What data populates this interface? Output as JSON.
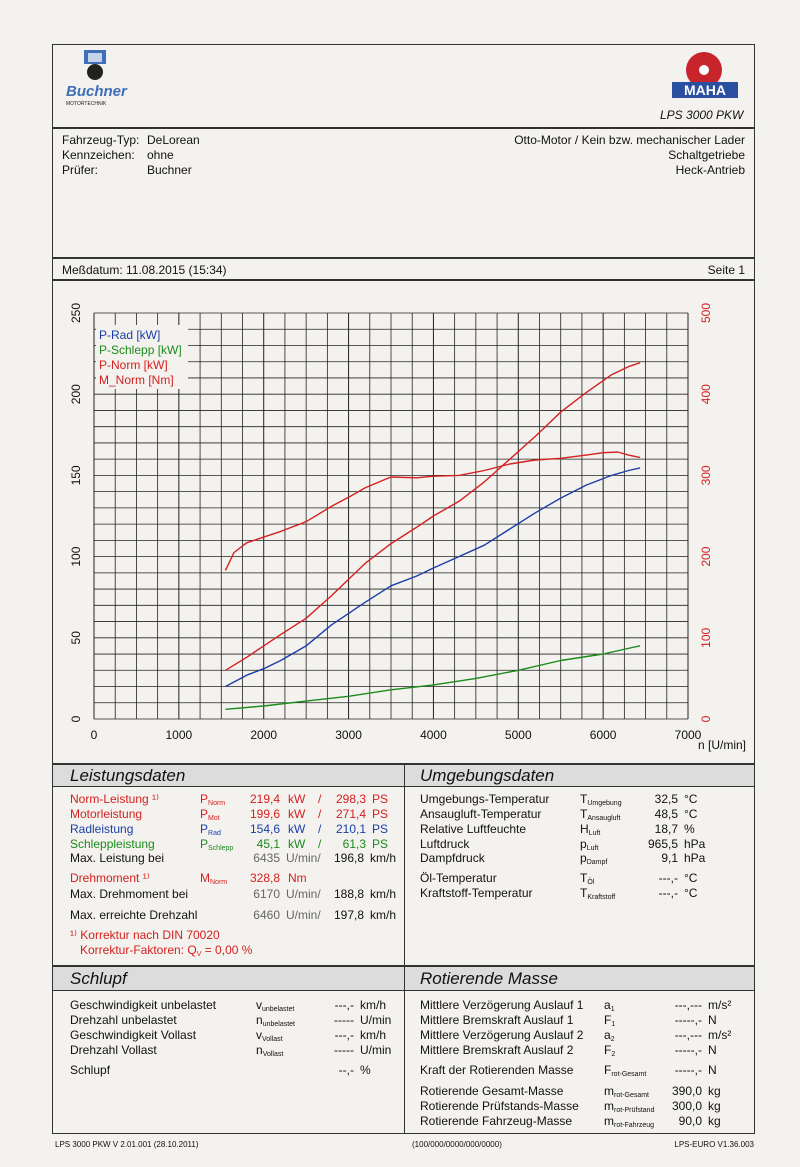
{
  "header": {
    "brand_left": "Buchner",
    "brand_left_sub": "MOTORTECHNIK",
    "brand_right_model": "LPS 3000 PKW",
    "brand_right_logo": "MAHA",
    "vehicle_type_label": "Fahrzeug-Typ:",
    "vehicle_type": "DeLorean",
    "plate_label": "Kennzeichen:",
    "plate": "ohne",
    "inspector_label": "Prüfer:",
    "inspector": "Buchner",
    "engine": "Otto-Motor / Kein bzw. mechanischer Lader",
    "gearbox": "Schaltgetriebe",
    "drive": "Heck-Antrieb",
    "measure_date": "Meßdatum: 11.08.2015 (15:34)",
    "page": "Seite 1"
  },
  "chart_data": {
    "type": "line",
    "xlabel": "n [U/min]",
    "x_ticks": [
      0,
      1000,
      2000,
      3000,
      4000,
      5000,
      6000,
      7000
    ],
    "left_ticks": [
      0,
      50,
      100,
      150,
      200,
      250
    ],
    "right_ticks": [
      0,
      100,
      200,
      300,
      400,
      500
    ],
    "xlim": [
      0,
      7000
    ],
    "ylim_left": [
      0,
      250
    ],
    "ylim_right": [
      0,
      500
    ],
    "legend": [
      "P-Rad [kW]",
      "P-Schlepp [kW]",
      "P-Norm [kW]",
      "M_Norm [Nm]"
    ],
    "series": [
      {
        "name": "P-Rad [kW]",
        "color": "#1a3ea8",
        "axis": "left",
        "x": [
          1550,
          1800,
          2000,
          2200,
          2500,
          2800,
          3000,
          3200,
          3500,
          3800,
          4000,
          4300,
          4600,
          4900,
          5200,
          5500,
          5800,
          6100,
          6300,
          6435
        ],
        "y": [
          20,
          27,
          31,
          36,
          45,
          58,
          65,
          72,
          82,
          88,
          93,
          100,
          107,
          117,
          127,
          136,
          144,
          150,
          153,
          154.6
        ]
      },
      {
        "name": "P-Schlepp [kW]",
        "color": "#1c8a1c",
        "axis": "left",
        "x": [
          1550,
          2000,
          2500,
          3000,
          3500,
          4000,
          4500,
          5000,
          5500,
          6000,
          6435
        ],
        "y": [
          6,
          8,
          11,
          14,
          18,
          21,
          25,
          30,
          36,
          40,
          45.1
        ]
      },
      {
        "name": "P-Norm [kW]",
        "color": "#d42020",
        "axis": "left",
        "x": [
          1550,
          1800,
          2000,
          2200,
          2500,
          2800,
          3000,
          3200,
          3500,
          3800,
          4000,
          4300,
          4600,
          4900,
          5200,
          5500,
          5800,
          6100,
          6300,
          6435
        ],
        "y": [
          30,
          38,
          45,
          52,
          62,
          76,
          86,
          96,
          108,
          118,
          125,
          134,
          146,
          160,
          174,
          189,
          201,
          212,
          217,
          219.4
        ]
      },
      {
        "name": "M_Norm [Nm]",
        "color": "#d42020",
        "axis": "right",
        "x": [
          1550,
          1650,
          1800,
          2000,
          2200,
          2500,
          2800,
          3000,
          3200,
          3500,
          3800,
          4000,
          4300,
          4600,
          4900,
          5200,
          5500,
          5800,
          6000,
          6170,
          6300,
          6435
        ],
        "y": [
          183,
          205,
          217,
          224,
          231,
          243,
          262,
          273,
          285,
          298,
          297,
          299,
          300,
          306,
          314,
          319,
          321,
          325,
          328,
          328.8,
          325,
          322
        ]
      }
    ]
  },
  "leistung": {
    "title": "Leistungsdaten",
    "rows": [
      {
        "label": "Norm-Leistung ¹⁾",
        "sym": "P",
        "sub": "Norm",
        "v1": "219,4",
        "u1": "kW",
        "sep": "/",
        "v2": "298,3",
        "u2": "PS"
      },
      {
        "label": "Motorleistung",
        "sym": "P",
        "sub": "Mot",
        "v1": "199,6",
        "u1": "kW",
        "sep": "/",
        "v2": "271,4",
        "u2": "PS"
      },
      {
        "label": "Radleistung",
        "sym": "P",
        "sub": "Rad",
        "v1": "154,6",
        "u1": "kW",
        "sep": "/",
        "v2": "210,1",
        "u2": "PS"
      },
      {
        "label": "Schleppleistung",
        "sym": "P",
        "sub": "Schlepp",
        "v1": "45,1",
        "u1": "kW",
        "sep": "/",
        "v2": "61,3",
        "u2": "PS"
      }
    ],
    "maxp_label": "Max. Leistung bei",
    "maxp_rpm": "6435",
    "maxp_rpm_unit": "U/min/",
    "maxp_speed": "196,8",
    "maxp_speed_unit": "km/h",
    "torque_label": "Drehmoment ¹⁾",
    "torque_sym": "M",
    "torque_sub": "Norm",
    "torque_val": "328,8",
    "torque_unit": "Nm",
    "maxt_label": "Max. Drehmoment bei",
    "maxt_rpm": "6170",
    "maxt_rpm_unit": "U/min/",
    "maxt_speed": "188,8",
    "maxt_speed_unit": "km/h",
    "maxn_label": "Max. erreichte Drehzahl",
    "maxn_rpm": "6460",
    "maxn_rpm_unit": "U/min/",
    "maxn_speed": "197,8",
    "maxn_speed_unit": "km/h",
    "note1": "¹⁾ Korrektur nach DIN 70020",
    "note2": "Korrektur-Faktoren: Q",
    "note2_sub": "V",
    "note2_val": "=   0,00 %"
  },
  "umgebung": {
    "title": "Umgebungsdaten",
    "rows": [
      {
        "label": "Umgebungs-Temperatur",
        "sym": "T",
        "sub": "Umgebung",
        "val": "32,5",
        "unit": "°C"
      },
      {
        "label": "Ansaugluft-Temperatur",
        "sym": "T",
        "sub": "Ansaugluft",
        "val": "48,5",
        "unit": "°C"
      },
      {
        "label": "Relative Luftfeuchte",
        "sym": "H",
        "sub": "Luft",
        "val": "18,7",
        "unit": "%"
      },
      {
        "label": "Luftdruck",
        "sym": "p",
        "sub": "Luft",
        "val": "965,5",
        "unit": "hPa"
      },
      {
        "label": "Dampfdruck",
        "sym": "p",
        "sub": "Dampf",
        "val": "9,1",
        "unit": "hPa"
      },
      {
        "label": "Öl-Temperatur",
        "sym": "T",
        "sub": "Öl",
        "val": "---,-",
        "unit": "°C"
      },
      {
        "label": "Kraftstoff-Temperatur",
        "sym": "T",
        "sub": "Kraftstoff",
        "val": "---,-",
        "unit": "°C"
      }
    ]
  },
  "schlupf": {
    "title": "Schlupf",
    "rows": [
      {
        "label": "Geschwindigkeit unbelastet",
        "sym": "v",
        "sub": "unbelastet",
        "val": "---,-",
        "unit": "km/h"
      },
      {
        "label": "Drehzahl unbelastet",
        "sym": "n",
        "sub": "unbelastet",
        "val": "-----",
        "unit": "U/min"
      },
      {
        "label": "Geschwindigkeit Vollast",
        "sym": "v",
        "sub": "Vollast",
        "val": "---,-",
        "unit": "km/h"
      },
      {
        "label": "Drehzahl Vollast",
        "sym": "n",
        "sub": "Vollast",
        "val": "-----",
        "unit": "U/min"
      },
      {
        "label": "Schlupf",
        "sym": "",
        "sub": "",
        "val": "--,-",
        "unit": "%"
      }
    ]
  },
  "rotierend": {
    "title": "Rotierende Masse",
    "rows": [
      {
        "label": "Mittlere Verzögerung Auslauf 1",
        "sym": "a",
        "sub": "1",
        "val": "---,---",
        "unit": "m/s²"
      },
      {
        "label": "Mittlere Bremskraft Auslauf 1",
        "sym": "F",
        "sub": "1",
        "val": "-----,-",
        "unit": "N"
      },
      {
        "label": "Mittlere Verzögerung Auslauf 2",
        "sym": "a",
        "sub": "2",
        "val": "---,---",
        "unit": "m/s²"
      },
      {
        "label": "Mittlere Bremskraft Auslauf 2",
        "sym": "F",
        "sub": "2",
        "val": "-----,-",
        "unit": "N"
      },
      {
        "label": "Kraft der Rotierenden Masse",
        "sym": "F",
        "sub": "rot-Gesamt",
        "val": "-----,-",
        "unit": "N"
      },
      {
        "label": "Rotierende Gesamt-Masse",
        "sym": "m",
        "sub": "rot-Gesamt",
        "val": "390,0",
        "unit": "kg"
      },
      {
        "label": "Rotierende Prüfstands-Masse",
        "sym": "m",
        "sub": "rot-Prüfstand",
        "val": "300,0",
        "unit": "kg"
      },
      {
        "label": "Rotierende Fahrzeug-Masse",
        "sym": "m",
        "sub": "rot-Fahrzeug",
        "val": "90,0",
        "unit": "kg"
      }
    ]
  },
  "footer": {
    "left": "LPS 3000 PKW V 2.01.001 (28.10.2011)",
    "center": "(100/000/0000/000/0000)",
    "right": "LPS-EURO V1.36.003"
  }
}
